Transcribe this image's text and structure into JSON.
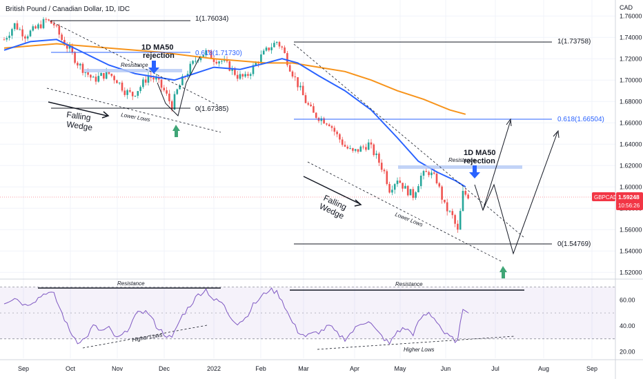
{
  "header": {
    "title": "British Pound / Canadian Dollar, 1D, IDC",
    "currency": "CAD"
  },
  "price_axis": {
    "ticks": [
      "1.76000",
      "1.74000",
      "1.72000",
      "1.70000",
      "1.68000",
      "1.66000",
      "1.64000",
      "1.62000",
      "1.60000",
      "1.58000",
      "1.56000",
      "1.54000",
      "1.52000"
    ],
    "current_symbol": "GBPCAD",
    "current_price": "1.59248",
    "countdown": "10:56:26"
  },
  "rsi_axis": {
    "ticks": [
      "60.00",
      "40.00",
      "20.00"
    ]
  },
  "time_axis": {
    "ticks": [
      "Sep",
      "Oct",
      "Nov",
      "Dec",
      "2022",
      "Feb",
      "Mar",
      "Apr",
      "May",
      "Jun",
      "Jul",
      "Aug",
      "Sep"
    ]
  },
  "annotations": {
    "fib1_top": "1(1.76034)",
    "fib1_mid": "0.618(1.71730)",
    "fib1_bottom": "0(1.67385)",
    "fib2_top": "1(1.73758)",
    "fib2_mid": "0.618(1.66504)",
    "fib2_bottom": "0(1.54769)",
    "ma50_rejection_1_line1": "1D MA50",
    "ma50_rejection_1_line2": "rejection",
    "ma50_rejection_2_line1": "1D MA50",
    "ma50_rejection_2_line2": "rejection",
    "resistance_1": "Resistance",
    "resistance_2": "Resistance",
    "falling_wedge_1_line1": "Falling",
    "falling_wedge_1_line2": "Wedge",
    "falling_wedge_2_line1": "Falling",
    "falling_wedge_2_line2": "Wedge",
    "lower_lows_1": "Lower Lows",
    "lower_lows_2": "Lower Lows",
    "rsi_resistance_1": "Resistance",
    "rsi_resistance_2": "Resistance",
    "higher_lows_1": "Higher Lows",
    "higher_lows_2": "Higher Lows"
  },
  "colors": {
    "up": "#26a69a",
    "down": "#ef5350",
    "ma50": "#2962ff",
    "ma200": "#f7931a",
    "rsi": "#7e57c2",
    "price_tag": "#f23645",
    "fib_mid": "#2962ff",
    "arrow_down": "#2962ff",
    "arrow_up": "#3fa576"
  },
  "chart_data": {
    "type": "candlestick",
    "symbol": "GBPCAD",
    "timeframe": "1D",
    "ylim": [
      1.515,
      1.775
    ],
    "rsi_ylim": [
      15,
      75
    ],
    "months": [
      "Sep",
      "Oct",
      "Nov",
      "Dec",
      "2022",
      "Feb",
      "Mar",
      "Apr",
      "May",
      "Jun",
      "Jul",
      "Aug",
      "Sep"
    ],
    "close_path": [
      [
        0,
        1.738
      ],
      [
        4,
        1.752
      ],
      [
        8,
        1.742
      ],
      [
        12,
        1.748
      ],
      [
        16,
        1.756
      ],
      [
        19,
        1.752
      ],
      [
        22,
        1.738
      ],
      [
        25,
        1.728
      ],
      [
        28,
        1.716
      ],
      [
        31,
        1.708
      ],
      [
        34,
        1.7
      ],
      [
        37,
        1.704
      ],
      [
        40,
        1.706
      ],
      [
        43,
        1.7
      ],
      [
        46,
        1.69
      ],
      [
        49,
        1.686
      ],
      [
        52,
        1.694
      ],
      [
        55,
        1.704
      ],
      [
        58,
        1.7
      ],
      [
        61,
        1.69
      ],
      [
        64,
        1.676
      ],
      [
        66,
        1.69
      ],
      [
        68,
        1.7
      ],
      [
        71,
        1.712
      ],
      [
        74,
        1.722
      ],
      [
        77,
        1.726
      ],
      [
        80,
        1.72
      ],
      [
        83,
        1.718
      ],
      [
        86,
        1.712
      ],
      [
        89,
        1.704
      ],
      [
        92,
        1.702
      ],
      [
        95,
        1.712
      ],
      [
        98,
        1.722
      ],
      [
        101,
        1.73
      ],
      [
        104,
        1.736
      ],
      [
        106,
        1.73
      ],
      [
        109,
        1.712
      ],
      [
        112,
        1.696
      ],
      [
        115,
        1.68
      ],
      [
        118,
        1.668
      ],
      [
        121,
        1.664
      ],
      [
        124,
        1.66
      ],
      [
        127,
        1.648
      ],
      [
        130,
        1.638
      ],
      [
        133,
        1.632
      ],
      [
        136,
        1.636
      ],
      [
        139,
        1.64
      ],
      [
        142,
        1.628
      ],
      [
        145,
        1.614
      ],
      [
        147,
        1.598
      ],
      [
        150,
        1.608
      ],
      [
        153,
        1.598
      ],
      [
        156,
        1.592
      ],
      [
        159,
        1.61
      ],
      [
        162,
        1.614
      ],
      [
        165,
        1.606
      ],
      [
        168,
        1.582
      ],
      [
        171,
        1.572
      ],
      [
        173,
        1.558
      ],
      [
        175,
        1.594
      ],
      [
        177,
        1.592
      ]
    ],
    "ma50_path": [
      [
        0,
        1.728
      ],
      [
        10,
        1.736
      ],
      [
        20,
        1.738
      ],
      [
        30,
        1.726
      ],
      [
        40,
        1.714
      ],
      [
        50,
        1.706
      ],
      [
        60,
        1.702
      ],
      [
        65,
        1.7
      ],
      [
        70,
        1.704
      ],
      [
        80,
        1.712
      ],
      [
        90,
        1.71
      ],
      [
        100,
        1.716
      ],
      [
        106,
        1.72
      ],
      [
        112,
        1.716
      ],
      [
        120,
        1.704
      ],
      [
        130,
        1.69
      ],
      [
        140,
        1.672
      ],
      [
        150,
        1.646
      ],
      [
        158,
        1.624
      ],
      [
        165,
        1.614
      ],
      [
        172,
        1.606
      ],
      [
        176,
        1.6
      ]
    ],
    "ma200_path": [
      [
        0,
        1.73
      ],
      [
        20,
        1.734
      ],
      [
        40,
        1.73
      ],
      [
        60,
        1.726
      ],
      [
        80,
        1.72
      ],
      [
        100,
        1.716
      ],
      [
        110,
        1.716
      ],
      [
        120,
        1.712
      ],
      [
        130,
        1.708
      ],
      [
        140,
        1.7
      ],
      [
        150,
        1.69
      ],
      [
        160,
        1.682
      ],
      [
        170,
        1.672
      ],
      [
        176,
        1.668
      ]
    ],
    "rsi_path": [
      [
        0,
        58
      ],
      [
        4,
        62
      ],
      [
        8,
        56
      ],
      [
        12,
        60
      ],
      [
        16,
        66
      ],
      [
        19,
        64
      ],
      [
        22,
        50
      ],
      [
        25,
        36
      ],
      [
        28,
        28
      ],
      [
        31,
        30
      ],
      [
        34,
        40
      ],
      [
        37,
        36
      ],
      [
        40,
        38
      ],
      [
        43,
        30
      ],
      [
        46,
        34
      ],
      [
        49,
        44
      ],
      [
        52,
        52
      ],
      [
        55,
        50
      ],
      [
        58,
        40
      ],
      [
        61,
        34
      ],
      [
        64,
        30
      ],
      [
        66,
        40
      ],
      [
        68,
        48
      ],
      [
        71,
        56
      ],
      [
        74,
        64
      ],
      [
        77,
        68
      ],
      [
        80,
        60
      ],
      [
        83,
        58
      ],
      [
        86,
        48
      ],
      [
        89,
        42
      ],
      [
        92,
        46
      ],
      [
        95,
        56
      ],
      [
        98,
        62
      ],
      [
        101,
        68
      ],
      [
        104,
        66
      ],
      [
        106,
        60
      ],
      [
        109,
        46
      ],
      [
        112,
        36
      ],
      [
        115,
        32
      ],
      [
        118,
        34
      ],
      [
        121,
        36
      ],
      [
        124,
        40
      ],
      [
        127,
        34
      ],
      [
        130,
        30
      ],
      [
        133,
        36
      ],
      [
        136,
        42
      ],
      [
        139,
        44
      ],
      [
        142,
        36
      ],
      [
        145,
        30
      ],
      [
        147,
        26
      ],
      [
        150,
        36
      ],
      [
        153,
        38
      ],
      [
        156,
        34
      ],
      [
        159,
        46
      ],
      [
        162,
        50
      ],
      [
        165,
        44
      ],
      [
        168,
        34
      ],
      [
        171,
        30
      ],
      [
        173,
        28
      ],
      [
        175,
        54
      ],
      [
        177,
        52
      ]
    ],
    "x_max": 240
  }
}
